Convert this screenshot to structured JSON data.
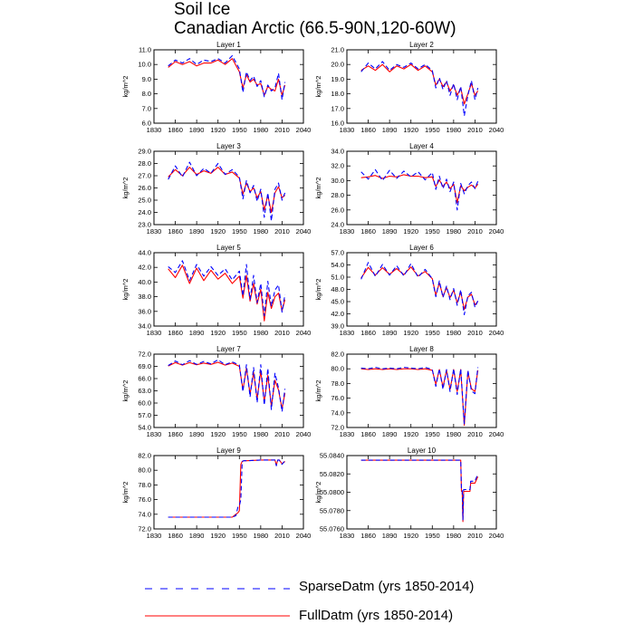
{
  "title": "Soil Ice",
  "subtitle": "Canadian Arctic (66.5-90N,120-60W)",
  "legend": [
    {
      "label": "SparseDatm (yrs 1850-2014)",
      "color": "#0000ff",
      "dash": "dashed"
    },
    {
      "label": "FullDatm (yrs 1850-2014)",
      "color": "#ff0000",
      "dash": "solid"
    }
  ],
  "chart_data": [
    {
      "type": "line",
      "title": "Layer 1",
      "ylabel": "kg/m^2",
      "xlim": [
        1830,
        2040
      ],
      "ylim": [
        6,
        11
      ],
      "xticks": [
        "1830",
        "1860",
        "1890",
        "1920",
        "1950",
        "1980",
        "2010",
        "2040"
      ],
      "yticks": [
        "6.0",
        "7.0",
        "8.0",
        "9.0",
        "10.0",
        "11.0"
      ],
      "x": [
        1850,
        1860,
        1870,
        1880,
        1890,
        1900,
        1910,
        1920,
        1930,
        1940,
        1950,
        1955,
        1960,
        1965,
        1970,
        1975,
        1980,
        1985,
        1990,
        1995,
        2000,
        2005,
        2010,
        2014
      ],
      "series": [
        {
          "name": "SparseDatm (yrs 1850-2014)",
          "values": [
            9.9,
            10.3,
            10.1,
            10.4,
            10.0,
            10.3,
            10.2,
            10.4,
            10.1,
            10.6,
            9.7,
            8.1,
            9.5,
            8.9,
            9.2,
            8.5,
            8.9,
            7.8,
            8.6,
            8.2,
            8.4,
            9.4,
            7.6,
            8.8
          ]
        },
        {
          "name": "FullDatm (yrs 1850-2014)",
          "values": [
            9.8,
            10.2,
            10.0,
            10.2,
            9.9,
            10.1,
            10.1,
            10.3,
            10.0,
            10.4,
            9.5,
            8.4,
            9.3,
            8.8,
            9.0,
            8.6,
            8.7,
            7.9,
            8.5,
            8.3,
            8.2,
            9.0,
            7.9,
            8.6
          ]
        }
      ]
    },
    {
      "type": "line",
      "title": "Layer 2",
      "ylabel": "kg/m^2",
      "xlim": [
        1830,
        2040
      ],
      "ylim": [
        16,
        21
      ],
      "xticks": [
        "1830",
        "1860",
        "1890",
        "1920",
        "1950",
        "1980",
        "2010",
        "2040"
      ],
      "yticks": [
        "16.0",
        "17.0",
        "18.0",
        "19.0",
        "20.0",
        "21.0"
      ],
      "x": [
        1850,
        1860,
        1870,
        1880,
        1890,
        1900,
        1910,
        1920,
        1930,
        1940,
        1950,
        1955,
        1960,
        1965,
        1970,
        1975,
        1980,
        1985,
        1990,
        1995,
        2000,
        2005,
        2010,
        2014
      ],
      "series": [
        {
          "name": "SparseDatm (yrs 1850-2014)",
          "values": [
            19.5,
            20.1,
            19.7,
            20.2,
            19.6,
            20.0,
            19.8,
            20.1,
            19.7,
            20.0,
            19.6,
            18.4,
            19.1,
            18.3,
            18.9,
            17.9,
            18.7,
            17.6,
            18.5,
            16.5,
            17.9,
            18.9,
            17.6,
            18.4
          ]
        },
        {
          "name": "FullDatm (yrs 1850-2014)",
          "values": [
            19.6,
            19.9,
            19.6,
            20.0,
            19.5,
            19.9,
            19.7,
            20.0,
            19.6,
            19.9,
            19.5,
            18.6,
            19.0,
            18.5,
            18.8,
            18.2,
            18.6,
            17.9,
            18.4,
            17.3,
            18.0,
            18.7,
            17.9,
            18.2
          ]
        }
      ]
    },
    {
      "type": "line",
      "title": "Layer 3",
      "ylabel": "kg/m^2",
      "xlim": [
        1830,
        2040
      ],
      "ylim": [
        23,
        29
      ],
      "xticks": [
        "1830",
        "1860",
        "1890",
        "1920",
        "1950",
        "1980",
        "2010",
        "2040"
      ],
      "yticks": [
        "23.0",
        "24.0",
        "25.0",
        "26.0",
        "27.0",
        "28.0",
        "29.0"
      ],
      "x": [
        1850,
        1860,
        1870,
        1880,
        1890,
        1900,
        1910,
        1920,
        1930,
        1940,
        1950,
        1955,
        1960,
        1965,
        1970,
        1975,
        1980,
        1985,
        1990,
        1995,
        2000,
        2005,
        2010,
        2014
      ],
      "series": [
        {
          "name": "SparseDatm (yrs 1850-2014)",
          "values": [
            26.7,
            27.8,
            26.9,
            28.1,
            27.0,
            27.6,
            27.2,
            28.0,
            27.1,
            27.5,
            26.9,
            25.1,
            26.6,
            25.6,
            26.2,
            24.9,
            25.9,
            23.6,
            25.6,
            23.3,
            25.9,
            26.4,
            25.0,
            25.6
          ]
        },
        {
          "name": "FullDatm (yrs 1850-2014)",
          "values": [
            26.9,
            27.5,
            27.0,
            27.7,
            27.1,
            27.4,
            27.2,
            27.7,
            27.1,
            27.3,
            26.8,
            25.5,
            26.4,
            25.7,
            26.0,
            25.2,
            25.7,
            24.2,
            25.4,
            24.0,
            25.6,
            26.1,
            25.2,
            25.4
          ]
        }
      ]
    },
    {
      "type": "line",
      "title": "Layer 4",
      "ylabel": "kg/m^2",
      "xlim": [
        1830,
        2040
      ],
      "ylim": [
        24,
        34
      ],
      "xticks": [
        "1830",
        "1860",
        "1890",
        "1920",
        "1950",
        "1980",
        "2010",
        "2040"
      ],
      "yticks": [
        "24.0",
        "26.0",
        "28.0",
        "30.0",
        "32.0",
        "34.0"
      ],
      "x": [
        1850,
        1860,
        1870,
        1880,
        1890,
        1900,
        1910,
        1920,
        1930,
        1940,
        1950,
        1955,
        1960,
        1965,
        1970,
        1975,
        1980,
        1985,
        1990,
        1995,
        2000,
        2005,
        2010,
        2014
      ],
      "series": [
        {
          "name": "SparseDatm (yrs 1850-2014)",
          "values": [
            31.2,
            30.2,
            31.5,
            30.0,
            31.4,
            30.3,
            31.3,
            30.5,
            31.2,
            30.1,
            31.1,
            28.8,
            30.6,
            28.9,
            30.2,
            28.5,
            29.8,
            26.0,
            29.6,
            28.2,
            29.3,
            29.8,
            28.9,
            29.9
          ]
        },
        {
          "name": "FullDatm (yrs 1850-2014)",
          "values": [
            30.4,
            30.5,
            30.7,
            30.3,
            30.6,
            30.5,
            30.8,
            30.6,
            30.6,
            30.4,
            30.5,
            29.2,
            30.1,
            29.2,
            29.8,
            28.9,
            29.5,
            27.0,
            29.3,
            28.6,
            29.1,
            29.4,
            29.0,
            29.5
          ]
        }
      ]
    },
    {
      "type": "line",
      "title": "Layer 5",
      "ylabel": "kg/m^2",
      "xlim": [
        1830,
        2040
      ],
      "ylim": [
        34,
        44
      ],
      "xticks": [
        "1830",
        "1860",
        "1890",
        "1920",
        "1950",
        "1980",
        "2010",
        "2040"
      ],
      "yticks": [
        "34.0",
        "36.0",
        "38.0",
        "40.0",
        "42.0",
        "44.0"
      ],
      "x": [
        1850,
        1860,
        1870,
        1880,
        1890,
        1900,
        1910,
        1920,
        1930,
        1940,
        1950,
        1955,
        1960,
        1965,
        1970,
        1975,
        1980,
        1985,
        1990,
        1995,
        2000,
        2005,
        2010,
        2014
      ],
      "series": [
        {
          "name": "SparseDatm (yrs 1850-2014)",
          "values": [
            42.1,
            41.3,
            42.9,
            40.2,
            42.4,
            40.8,
            42.1,
            40.9,
            41.8,
            40.3,
            41.5,
            38.1,
            42.4,
            37.6,
            40.9,
            37.2,
            39.8,
            35.4,
            40.1,
            36.7,
            38.9,
            39.6,
            35.9,
            38.3
          ]
        },
        {
          "name": "FullDatm (yrs 1850-2014)",
          "values": [
            41.8,
            40.6,
            42.3,
            39.8,
            41.9,
            40.2,
            41.6,
            40.4,
            41.2,
            39.8,
            40.8,
            37.8,
            40.9,
            37.4,
            39.8,
            37.0,
            39.0,
            34.7,
            38.6,
            36.4,
            38.0,
            38.5,
            36.1,
            37.6
          ]
        }
      ]
    },
    {
      "type": "line",
      "title": "Layer 6",
      "ylabel": "kg/m^2",
      "xlim": [
        1830,
        2040
      ],
      "ylim": [
        39,
        57
      ],
      "xticks": [
        "1830",
        "1860",
        "1890",
        "1920",
        "1950",
        "1980",
        "2010",
        "2040"
      ],
      "yticks": [
        "39.0",
        "42.0",
        "45.0",
        "48.0",
        "51.0",
        "54.0",
        "57.0"
      ],
      "x": [
        1850,
        1860,
        1870,
        1880,
        1890,
        1900,
        1910,
        1920,
        1930,
        1940,
        1950,
        1955,
        1960,
        1965,
        1970,
        1975,
        1980,
        1985,
        1990,
        1995,
        2000,
        2005,
        2010,
        2014
      ],
      "series": [
        {
          "name": "SparseDatm (yrs 1850-2014)",
          "values": [
            50.5,
            54.6,
            51.2,
            54.1,
            51.5,
            53.8,
            51.3,
            54.3,
            51.0,
            52.9,
            50.6,
            46.2,
            50.1,
            46.0,
            48.8,
            45.5,
            48.2,
            44.1,
            47.9,
            41.8,
            46.4,
            47.3,
            43.6,
            45.2
          ]
        },
        {
          "name": "FullDatm (yrs 1850-2014)",
          "values": [
            50.8,
            53.4,
            51.5,
            53.3,
            51.7,
            53.1,
            51.6,
            53.5,
            51.3,
            52.4,
            50.6,
            46.6,
            49.6,
            46.3,
            48.4,
            46.0,
            47.8,
            44.7,
            47.3,
            43.1,
            46.1,
            46.8,
            44.2,
            45.0
          ]
        }
      ]
    },
    {
      "type": "line",
      "title": "Layer 7",
      "ylabel": "kg/m^2",
      "xlim": [
        1830,
        2040
      ],
      "ylim": [
        54,
        72
      ],
      "xticks": [
        "1830",
        "1860",
        "1890",
        "1920",
        "1950",
        "1980",
        "2010",
        "2040"
      ],
      "yticks": [
        "54.0",
        "57.0",
        "60.0",
        "63.0",
        "66.0",
        "69.0",
        "72.0"
      ],
      "x": [
        1850,
        1860,
        1870,
        1880,
        1890,
        1900,
        1910,
        1920,
        1930,
        1940,
        1950,
        1955,
        1960,
        1965,
        1970,
        1975,
        1980,
        1985,
        1990,
        1995,
        2000,
        2005,
        2010,
        2014
      ],
      "series": [
        {
          "name": "SparseDatm (yrs 1850-2014)",
          "values": [
            69.2,
            70.3,
            69.4,
            70.4,
            69.5,
            70.2,
            69.6,
            70.6,
            69.4,
            70.1,
            69.3,
            62.8,
            69.4,
            61.5,
            68.7,
            60.1,
            69.4,
            59.5,
            68.5,
            58.4,
            67.3,
            63.7,
            57.9,
            63.5
          ]
        },
        {
          "name": "FullDatm (yrs 1850-2014)",
          "values": [
            69.1,
            69.9,
            69.3,
            69.9,
            69.4,
            69.8,
            69.5,
            70.0,
            69.3,
            69.8,
            69.0,
            63.3,
            68.5,
            62.2,
            67.5,
            61.0,
            67.9,
            60.3,
            66.8,
            59.2,
            65.6,
            63.2,
            58.6,
            62.4
          ]
        }
      ]
    },
    {
      "type": "line",
      "title": "Layer 8",
      "ylabel": "kg/m^2",
      "xlim": [
        1830,
        2040
      ],
      "ylim": [
        72,
        82
      ],
      "xticks": [
        "1830",
        "1860",
        "1890",
        "1920",
        "1950",
        "1980",
        "2010",
        "2040"
      ],
      "yticks": [
        "72.0",
        "74.0",
        "76.0",
        "78.0",
        "80.0",
        "82.0"
      ],
      "x": [
        1850,
        1860,
        1870,
        1880,
        1890,
        1900,
        1910,
        1920,
        1930,
        1940,
        1950,
        1955,
        1960,
        1965,
        1970,
        1975,
        1980,
        1985,
        1990,
        1995,
        2000,
        2005,
        2010,
        2014
      ],
      "series": [
        {
          "name": "SparseDatm (yrs 1850-2014)",
          "values": [
            80.1,
            80.0,
            80.2,
            80.0,
            80.1,
            80.0,
            80.2,
            80.1,
            80.0,
            80.2,
            79.9,
            77.6,
            80.0,
            77.2,
            79.9,
            76.9,
            80.0,
            76.5,
            80.0,
            72.5,
            79.8,
            77.0,
            76.6,
            80.2
          ]
        },
        {
          "name": "FullDatm (yrs 1850-2014)",
          "values": [
            80.0,
            79.9,
            80.0,
            79.9,
            80.0,
            79.9,
            80.0,
            80.0,
            79.9,
            80.0,
            79.8,
            77.9,
            79.9,
            77.5,
            79.8,
            77.2,
            79.9,
            76.9,
            79.9,
            72.3,
            79.6,
            77.3,
            76.9,
            79.8
          ]
        }
      ]
    },
    {
      "type": "line",
      "title": "Layer 9",
      "ylabel": "kg/m^2",
      "xlim": [
        1830,
        2040
      ],
      "ylim": [
        72,
        82
      ],
      "xticks": [
        "1830",
        "1860",
        "1890",
        "1920",
        "1950",
        "1980",
        "2010",
        "2040"
      ],
      "yticks": [
        "72.0",
        "74.0",
        "76.0",
        "78.0",
        "80.0",
        "82.0"
      ],
      "x": [
        1850,
        1900,
        1940,
        1945,
        1948,
        1950,
        1952,
        1954,
        1956,
        1960,
        1980,
        2000,
        2002,
        2004,
        2006,
        2010,
        2014
      ],
      "series": [
        {
          "name": "SparseDatm (yrs 1850-2014)",
          "values": [
            73.6,
            73.6,
            73.6,
            73.8,
            75.0,
            75.2,
            76.0,
            81.2,
            81.3,
            81.3,
            81.4,
            81.4,
            80.6,
            81.4,
            81.4,
            80.8,
            81.3
          ]
        },
        {
          "name": "FullDatm (yrs 1850-2014)",
          "values": [
            73.6,
            73.6,
            73.6,
            74.0,
            74.2,
            74.5,
            80.8,
            81.2,
            81.3,
            81.3,
            81.4,
            81.4,
            80.7,
            81.4,
            81.4,
            80.9,
            81.2
          ]
        }
      ]
    },
    {
      "type": "line",
      "title": "Layer 10",
      "ylabel": "kg/m^2",
      "xlim": [
        1830,
        2040
      ],
      "ylim": [
        55.076,
        55.084
      ],
      "xticks": [
        "1830",
        "1860",
        "1890",
        "1920",
        "1950",
        "1980",
        "2010",
        "2040"
      ],
      "yticks": [
        "55.0760",
        "55.0780",
        "55.0800",
        "55.0820",
        "55.0840"
      ],
      "x": [
        1850,
        1900,
        1950,
        1990,
        1991,
        1992,
        1993,
        1994,
        1995,
        2000,
        2003,
        2004,
        2010,
        2014
      ],
      "series": [
        {
          "name": "SparseDatm (yrs 1850-2014)",
          "values": [
            55.0835,
            55.0835,
            55.0835,
            55.0835,
            55.0803,
            55.0803,
            55.077,
            55.0803,
            55.0803,
            55.0803,
            55.0803,
            55.0812,
            55.0812,
            55.082
          ]
        },
        {
          "name": "FullDatm (yrs 1850-2014)",
          "values": [
            55.0835,
            55.0835,
            55.0835,
            55.0835,
            55.0801,
            55.0801,
            55.0768,
            55.0801,
            55.0801,
            55.0801,
            55.0801,
            55.081,
            55.081,
            55.0817
          ]
        }
      ]
    }
  ]
}
